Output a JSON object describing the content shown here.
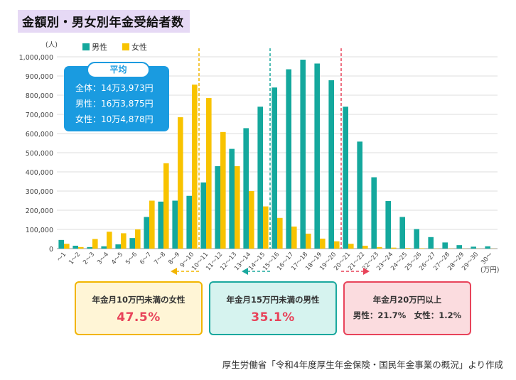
{
  "title": "金額別・男女別年金受給者数",
  "chart_data": {
    "type": "bar",
    "y_unit": "(人)",
    "x_unit": "(万円)",
    "ylim": [
      0,
      1000000
    ],
    "yticks": [
      "0",
      "100,000",
      "200,000",
      "300,000",
      "400,000",
      "500,000",
      "600,000",
      "700,000",
      "800,000",
      "900,000",
      "1,000,000"
    ],
    "categories": [
      "～1",
      "1～2",
      "2～3",
      "3～4",
      "4～5",
      "5～6",
      "6～7",
      "7～8",
      "8～9",
      "9～10",
      "10～11",
      "11～12",
      "12～13",
      "13～14",
      "14～15",
      "15～16",
      "16～17",
      "17～18",
      "18～19",
      "19～20",
      "20～21",
      "21～22",
      "22～23",
      "23～24",
      "24～25",
      "25～26",
      "26～27",
      "27～28",
      "28～29",
      "29～30",
      "30～"
    ],
    "series": [
      {
        "name": "男性",
        "color": "#14a89d",
        "values": [
          45000,
          15000,
          8000,
          12000,
          22000,
          55000,
          165000,
          245000,
          250000,
          275000,
          345000,
          430000,
          520000,
          628000,
          740000,
          840000,
          935000,
          985000,
          965000,
          878000,
          740000,
          558000,
          372000,
          248000,
          165000,
          102000,
          60000,
          32000,
          18000,
          10000,
          12000
        ]
      },
      {
        "name": "女性",
        "color": "#f8c300",
        "values": [
          25000,
          8000,
          50000,
          88000,
          80000,
          100000,
          250000,
          445000,
          685000,
          855000,
          785000,
          608000,
          430000,
          300000,
          220000,
          160000,
          115000,
          78000,
          52000,
          38000,
          25000,
          15000,
          8000,
          5000,
          3000,
          2000,
          1000,
          1000,
          500,
          500,
          500
        ]
      }
    ]
  },
  "average_box": {
    "title": "平均",
    "lines": [
      "全体：14万3,973円",
      "男性：16万3,875円",
      "女性：10万4,878円"
    ]
  },
  "summary": [
    {
      "label": "年金月10万円未満の女性",
      "value": "47.5%"
    },
    {
      "label": "年金月15万円未満の男性",
      "value": "35.1%"
    },
    {
      "label": "年金月20万円以上",
      "value": "男性：21.7%　女性：1.2%"
    }
  ],
  "source": "厚生労働省「令和4年度厚生年金保険・国民年金事業の概況」より作成"
}
